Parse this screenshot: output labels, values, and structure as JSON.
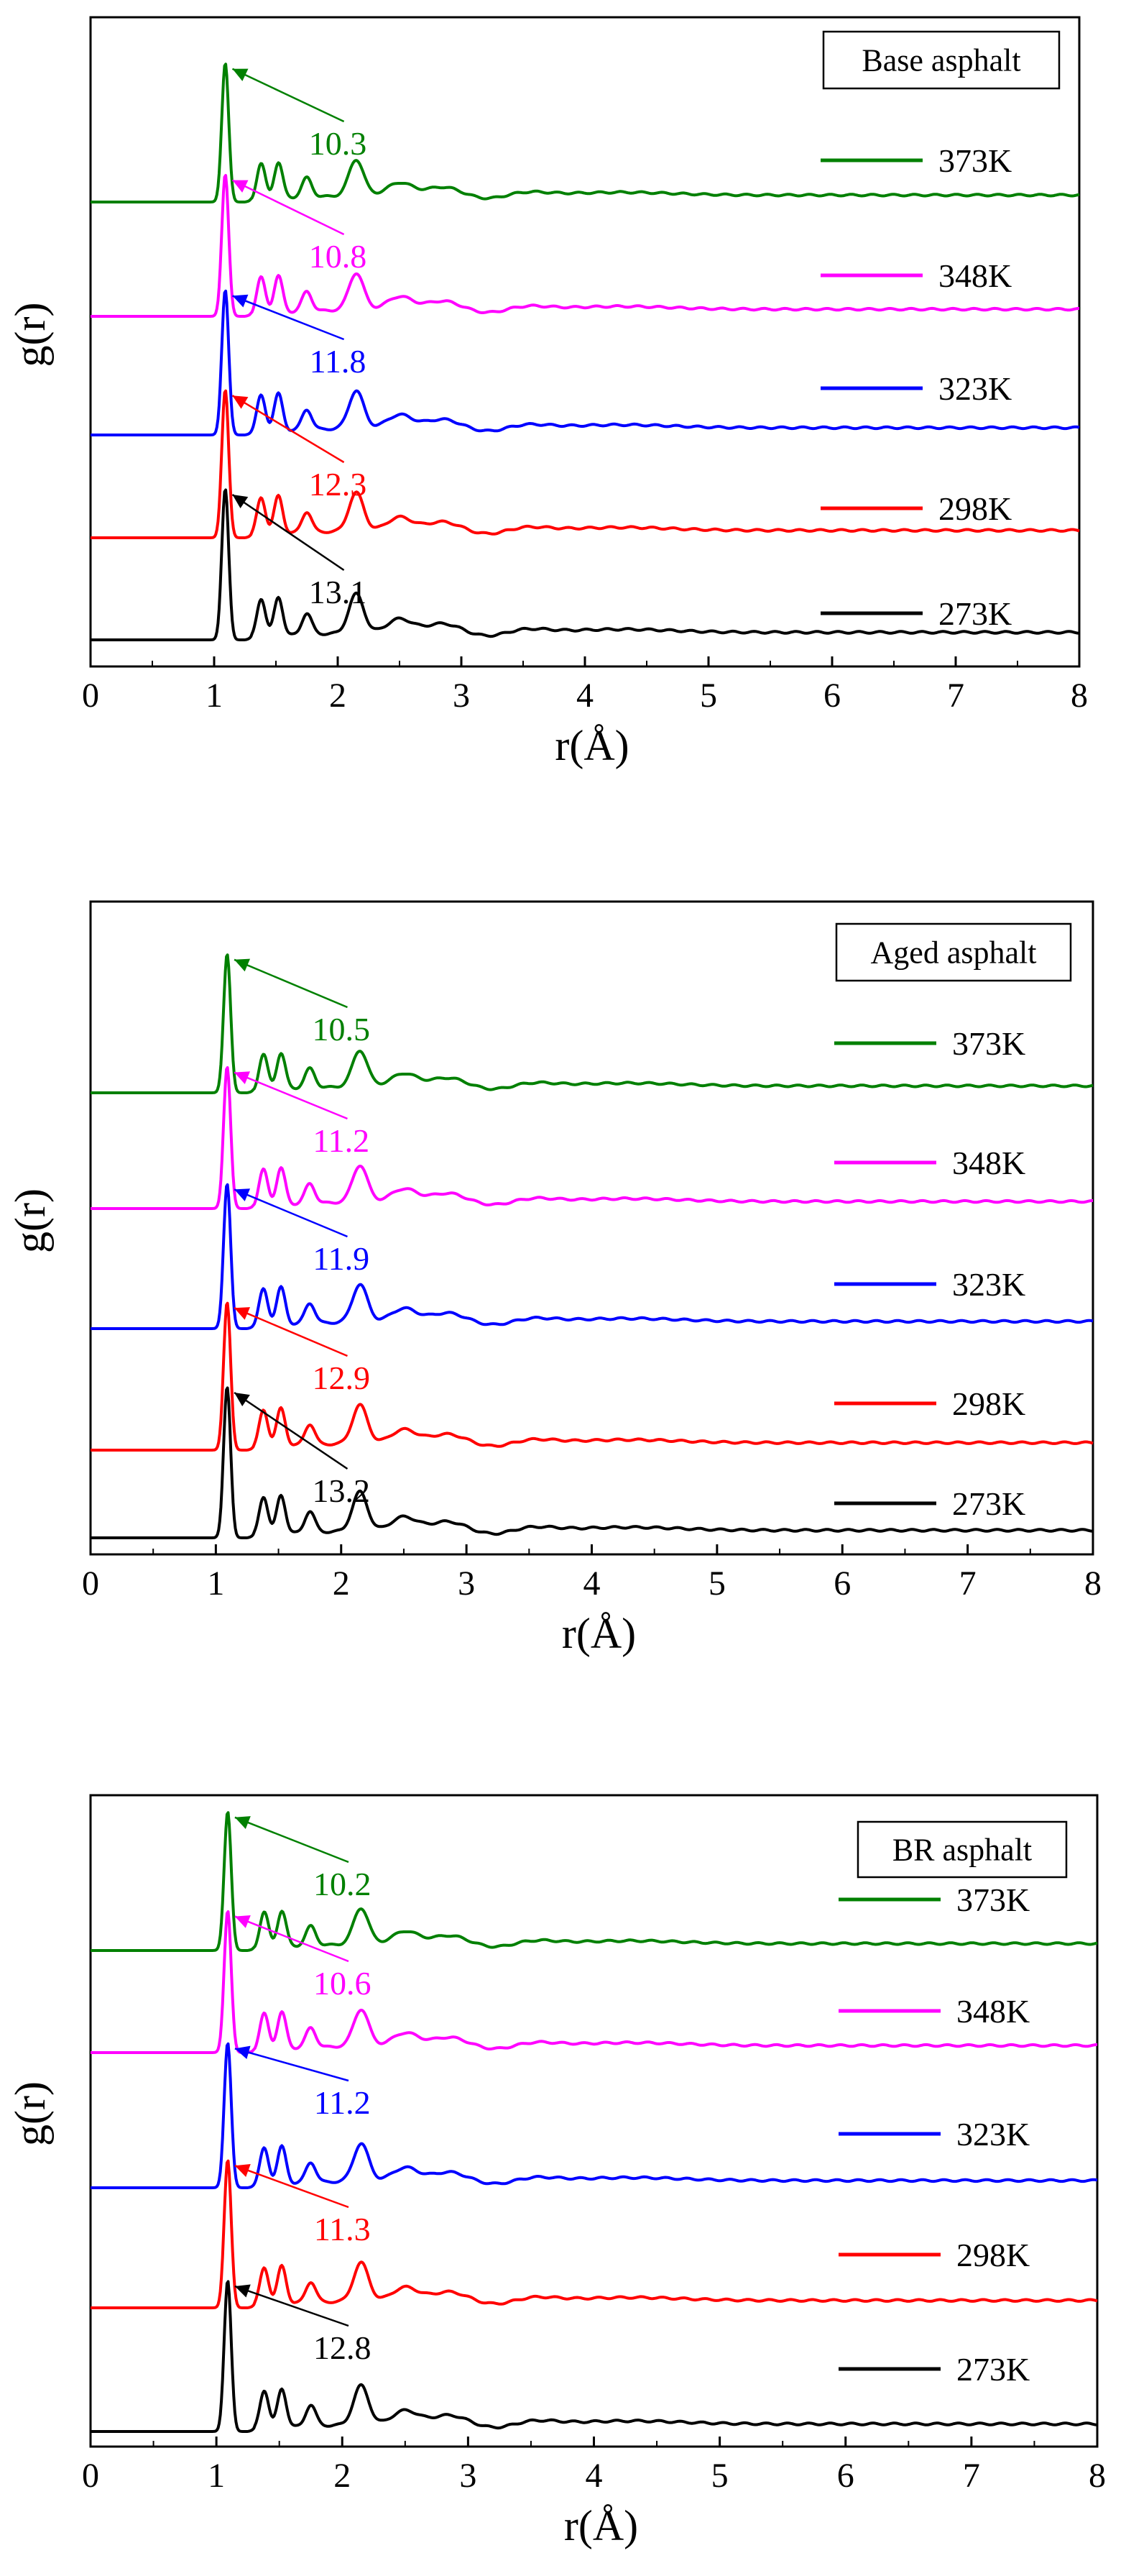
{
  "figure": {
    "description_free": true,
    "colors": {
      "273K": "#000000",
      "298K": "#ff0000",
      "323K": "#0000ff",
      "348K": "#ff00ff",
      "373K": "#008000"
    }
  },
  "chart_data": [
    {
      "type": "line",
      "title": "Base asphalt",
      "xlabel": "r(Å)",
      "ylabel": "g(r)",
      "xlim": [
        0,
        8
      ],
      "xticks": [
        "0",
        "1",
        "2",
        "3",
        "4",
        "5",
        "6",
        "7",
        "8"
      ],
      "series": [
        {
          "name": "373K",
          "color_key": "373K",
          "peak": 10.3,
          "peak_r": 1.09,
          "peak_label": "10.3"
        },
        {
          "name": "348K",
          "color_key": "348K",
          "peak": 10.8,
          "peak_r": 1.09,
          "peak_label": "10.8"
        },
        {
          "name": "323K",
          "color_key": "323K",
          "peak": 11.8,
          "peak_r": 1.09,
          "peak_label": "11.8"
        },
        {
          "name": "298K",
          "color_key": "298K",
          "peak": 12.3,
          "peak_r": 1.09,
          "peak_label": "12.3"
        },
        {
          "name": "273K",
          "color_key": "273K",
          "peak": 13.1,
          "peak_r": 1.09,
          "peak_label": "13.1"
        }
      ]
    },
    {
      "type": "line",
      "title": "Aged asphalt",
      "xlabel": "r(Å)",
      "ylabel": "g(r)",
      "xlim": [
        0,
        8
      ],
      "xticks": [
        "0",
        "1",
        "2",
        "3",
        "4",
        "5",
        "6",
        "7",
        "8"
      ],
      "series": [
        {
          "name": "373K",
          "color_key": "373K",
          "peak": 10.5,
          "peak_r": 1.09,
          "peak_label": "10.5"
        },
        {
          "name": "348K",
          "color_key": "348K",
          "peak": 11.2,
          "peak_r": 1.09,
          "peak_label": "11.2"
        },
        {
          "name": "323K",
          "color_key": "323K",
          "peak": 11.9,
          "peak_r": 1.09,
          "peak_label": "11.9"
        },
        {
          "name": "298K",
          "color_key": "298K",
          "peak": 12.9,
          "peak_r": 1.09,
          "peak_label": "12.9"
        },
        {
          "name": "273K",
          "color_key": "273K",
          "peak": 13.2,
          "peak_r": 1.09,
          "peak_label": "13.2"
        }
      ]
    },
    {
      "type": "line",
      "title": "BR asphalt",
      "xlabel": "r(Å)",
      "ylabel": "g(r)",
      "xlim": [
        0,
        8
      ],
      "xticks": [
        "0",
        "1",
        "2",
        "3",
        "4",
        "5",
        "6",
        "7",
        "8"
      ],
      "series": [
        {
          "name": "373K",
          "color_key": "373K",
          "peak": 10.2,
          "peak_r": 1.09,
          "peak_label": "10.2"
        },
        {
          "name": "348K",
          "color_key": "348K",
          "peak": 10.6,
          "peak_r": 1.09,
          "peak_label": "10.6"
        },
        {
          "name": "323K",
          "color_key": "323K",
          "peak": 11.2,
          "peak_r": 1.09,
          "peak_label": "11.2"
        },
        {
          "name": "298K",
          "color_key": "298K",
          "peak": 11.3,
          "peak_r": 1.09,
          "peak_label": "11.3"
        },
        {
          "name": "273K",
          "color_key": "273K",
          "peak": 12.8,
          "peak_r": 1.09,
          "peak_label": "12.8"
        }
      ]
    }
  ]
}
